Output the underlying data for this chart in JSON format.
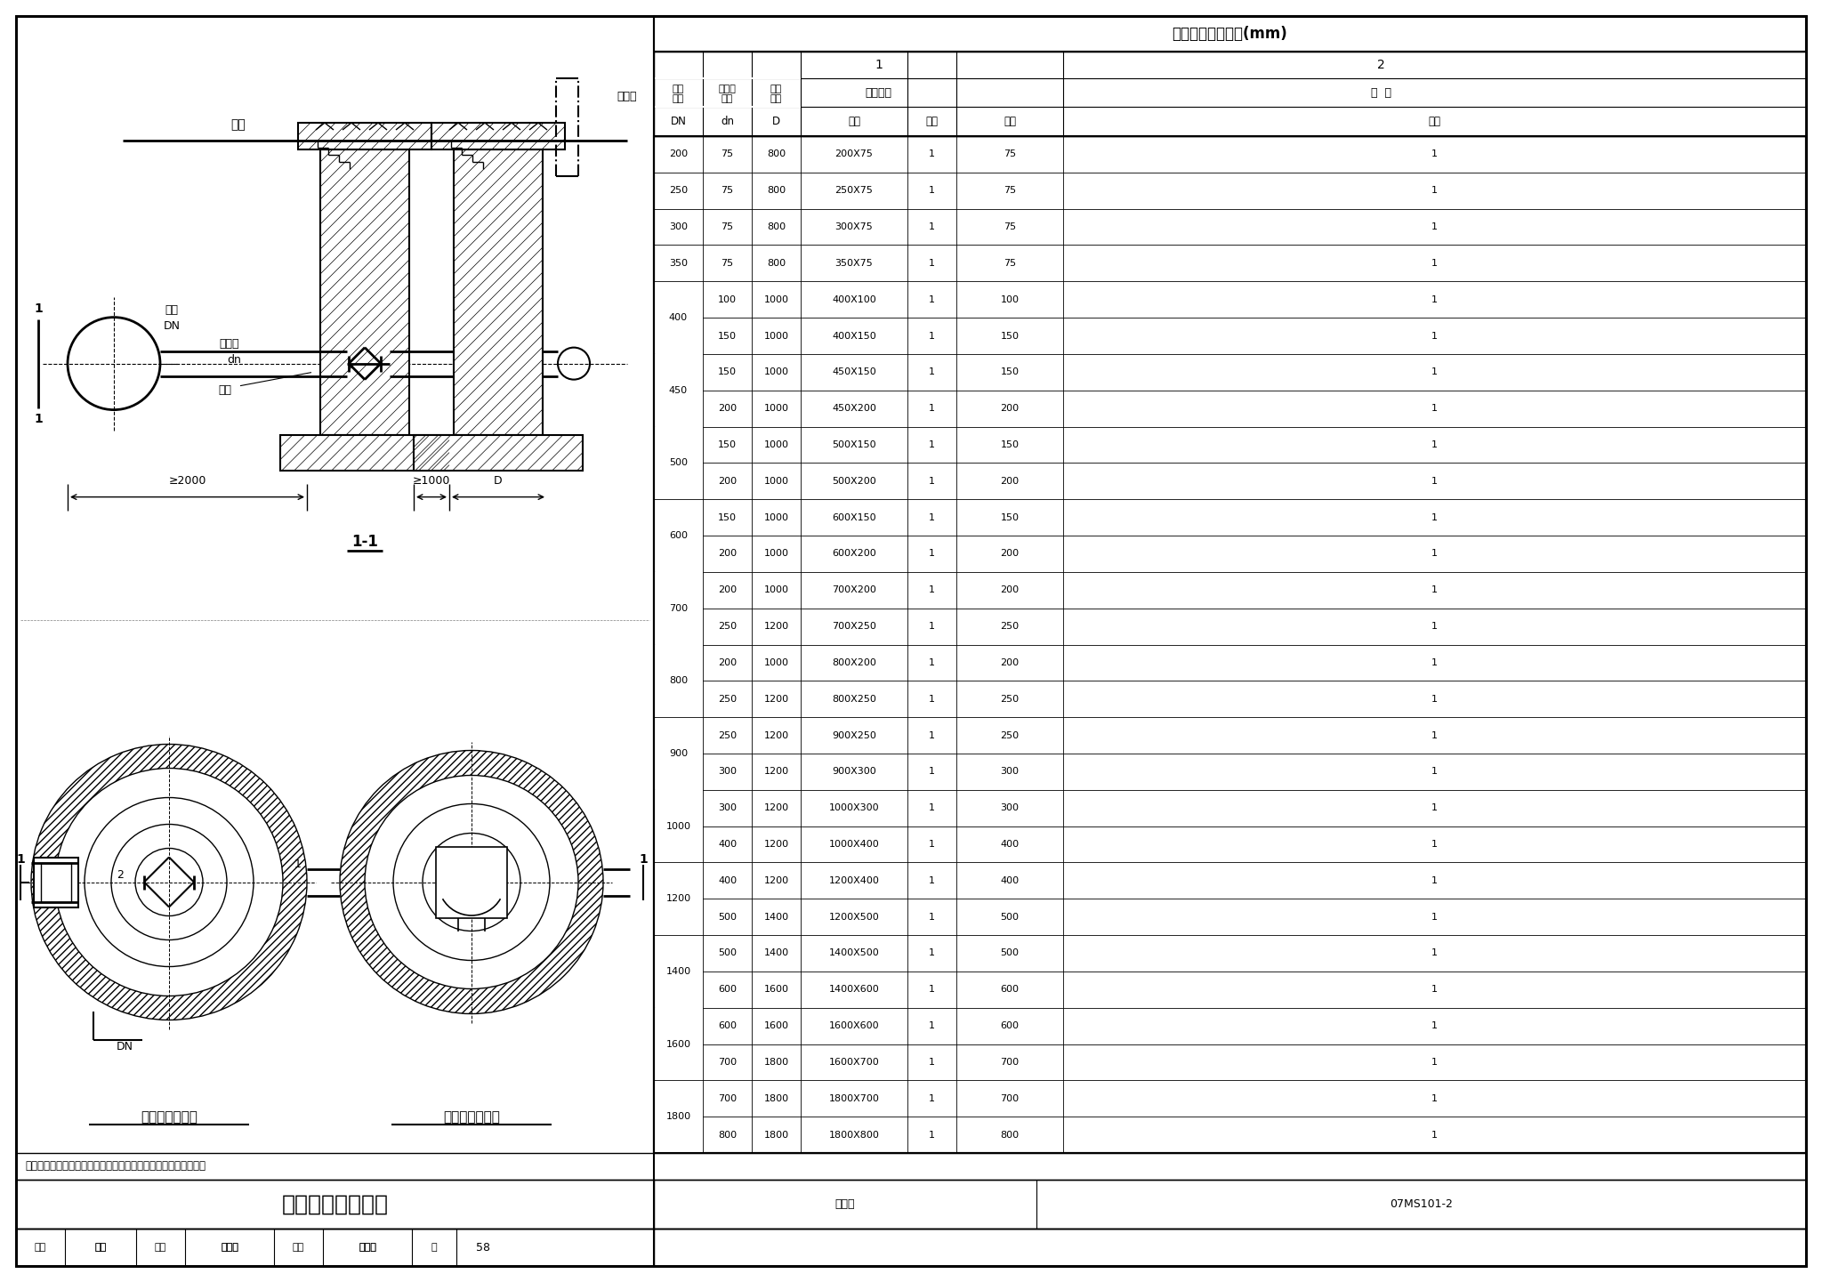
{
  "title": "砖砌排泥阀安装图",
  "figure_number": "07MS101-2",
  "page": "58",
  "table_title": "各部尺寸及材料表(mm)",
  "table_data": [
    [
      "200",
      "75",
      "800",
      "200X75",
      "1",
      "75",
      "1"
    ],
    [
      "250",
      "75",
      "800",
      "250X75",
      "1",
      "75",
      "1"
    ],
    [
      "300",
      "75",
      "800",
      "300X75",
      "1",
      "75",
      "1"
    ],
    [
      "350",
      "75",
      "800",
      "350X75",
      "1",
      "75",
      "1"
    ],
    [
      "400",
      "100",
      "1000",
      "400X100",
      "1",
      "100",
      "1"
    ],
    [
      "",
      "150",
      "1000",
      "400X150",
      "1",
      "150",
      "1"
    ],
    [
      "450",
      "150",
      "1000",
      "450X150",
      "1",
      "150",
      "1"
    ],
    [
      "",
      "200",
      "1000",
      "450X200",
      "1",
      "200",
      "1"
    ],
    [
      "500",
      "150",
      "1000",
      "500X150",
      "1",
      "150",
      "1"
    ],
    [
      "",
      "200",
      "1000",
      "500X200",
      "1",
      "200",
      "1"
    ],
    [
      "600",
      "150",
      "1000",
      "600X150",
      "1",
      "150",
      "1"
    ],
    [
      "",
      "200",
      "1000",
      "600X200",
      "1",
      "200",
      "1"
    ],
    [
      "700",
      "200",
      "1000",
      "700X200",
      "1",
      "200",
      "1"
    ],
    [
      "",
      "250",
      "1200",
      "700X250",
      "1",
      "250",
      "1"
    ],
    [
      "800",
      "200",
      "1000",
      "800X200",
      "1",
      "200",
      "1"
    ],
    [
      "",
      "250",
      "1200",
      "800X250",
      "1",
      "250",
      "1"
    ],
    [
      "900",
      "250",
      "1200",
      "900X250",
      "1",
      "250",
      "1"
    ],
    [
      "",
      "300",
      "1200",
      "900X300",
      "1",
      "300",
      "1"
    ],
    [
      "1000",
      "300",
      "1200",
      "1000X300",
      "1",
      "300",
      "1"
    ],
    [
      "",
      "400",
      "1200",
      "1000X400",
      "1",
      "400",
      "1"
    ],
    [
      "1200",
      "400",
      "1200",
      "1200X400",
      "1",
      "400",
      "1"
    ],
    [
      "",
      "500",
      "1400",
      "1200X500",
      "1",
      "500",
      "1"
    ],
    [
      "1400",
      "500",
      "1400",
      "1400X500",
      "1",
      "500",
      "1"
    ],
    [
      "",
      "600",
      "1600",
      "1400X600",
      "1",
      "600",
      "1"
    ],
    [
      "1600",
      "600",
      "1600",
      "1600X600",
      "1",
      "600",
      "1"
    ],
    [
      "",
      "700",
      "1800",
      "1600X700",
      "1",
      "700",
      "1"
    ],
    [
      "1800",
      "700",
      "1800",
      "1800X700",
      "1",
      "700",
      "1"
    ],
    [
      "",
      "800",
      "1800",
      "1800X800",
      "1",
      "800",
      "1"
    ]
  ],
  "merged_groups": [
    [
      0,
      1,
      "200"
    ],
    [
      1,
      2,
      "250"
    ],
    [
      2,
      3,
      "300"
    ],
    [
      3,
      4,
      "350"
    ],
    [
      4,
      6,
      "400"
    ],
    [
      6,
      8,
      "450"
    ],
    [
      8,
      10,
      "500"
    ],
    [
      10,
      12,
      "600"
    ],
    [
      12,
      14,
      "700"
    ],
    [
      14,
      16,
      "800"
    ],
    [
      16,
      18,
      "900"
    ],
    [
      18,
      20,
      "1000"
    ],
    [
      20,
      22,
      "1200"
    ],
    [
      22,
      24,
      "1400"
    ],
    [
      24,
      26,
      "1600"
    ],
    [
      26,
      28,
      "1800"
    ]
  ],
  "labels": {
    "ground": "地面",
    "overflow_pipe": "溢流管",
    "main_pipe_label": "千管",
    "DN": "DN",
    "drain_pipe_label": "排泥管",
    "dn": "dn",
    "brick_arch": "砖拱",
    "ge2000": "≥2000",
    "ge1000": "≥1000",
    "D_label": "D",
    "section": "1-1",
    "valve_well": "排泥阀井平面图",
    "drain_well": "排泥湿井平面图",
    "note": "说明：排泥阀井径根据排泥阀的直径和结构形式选用相应的井径。",
    "review_label": "审核",
    "cao_hao": "曹灏",
    "mu_lang": "木浪",
    "check_label": "校对",
    "ma_liankui": "马莲魁",
    "shan_yuankui": "山远魁",
    "design_label": "设计",
    "yao_guangshi": "姚光石",
    "wu_fangshi": "妩芳师",
    "page_label": "页",
    "tu_ji_hao": "图集号"
  },
  "bg_color": "#ffffff"
}
